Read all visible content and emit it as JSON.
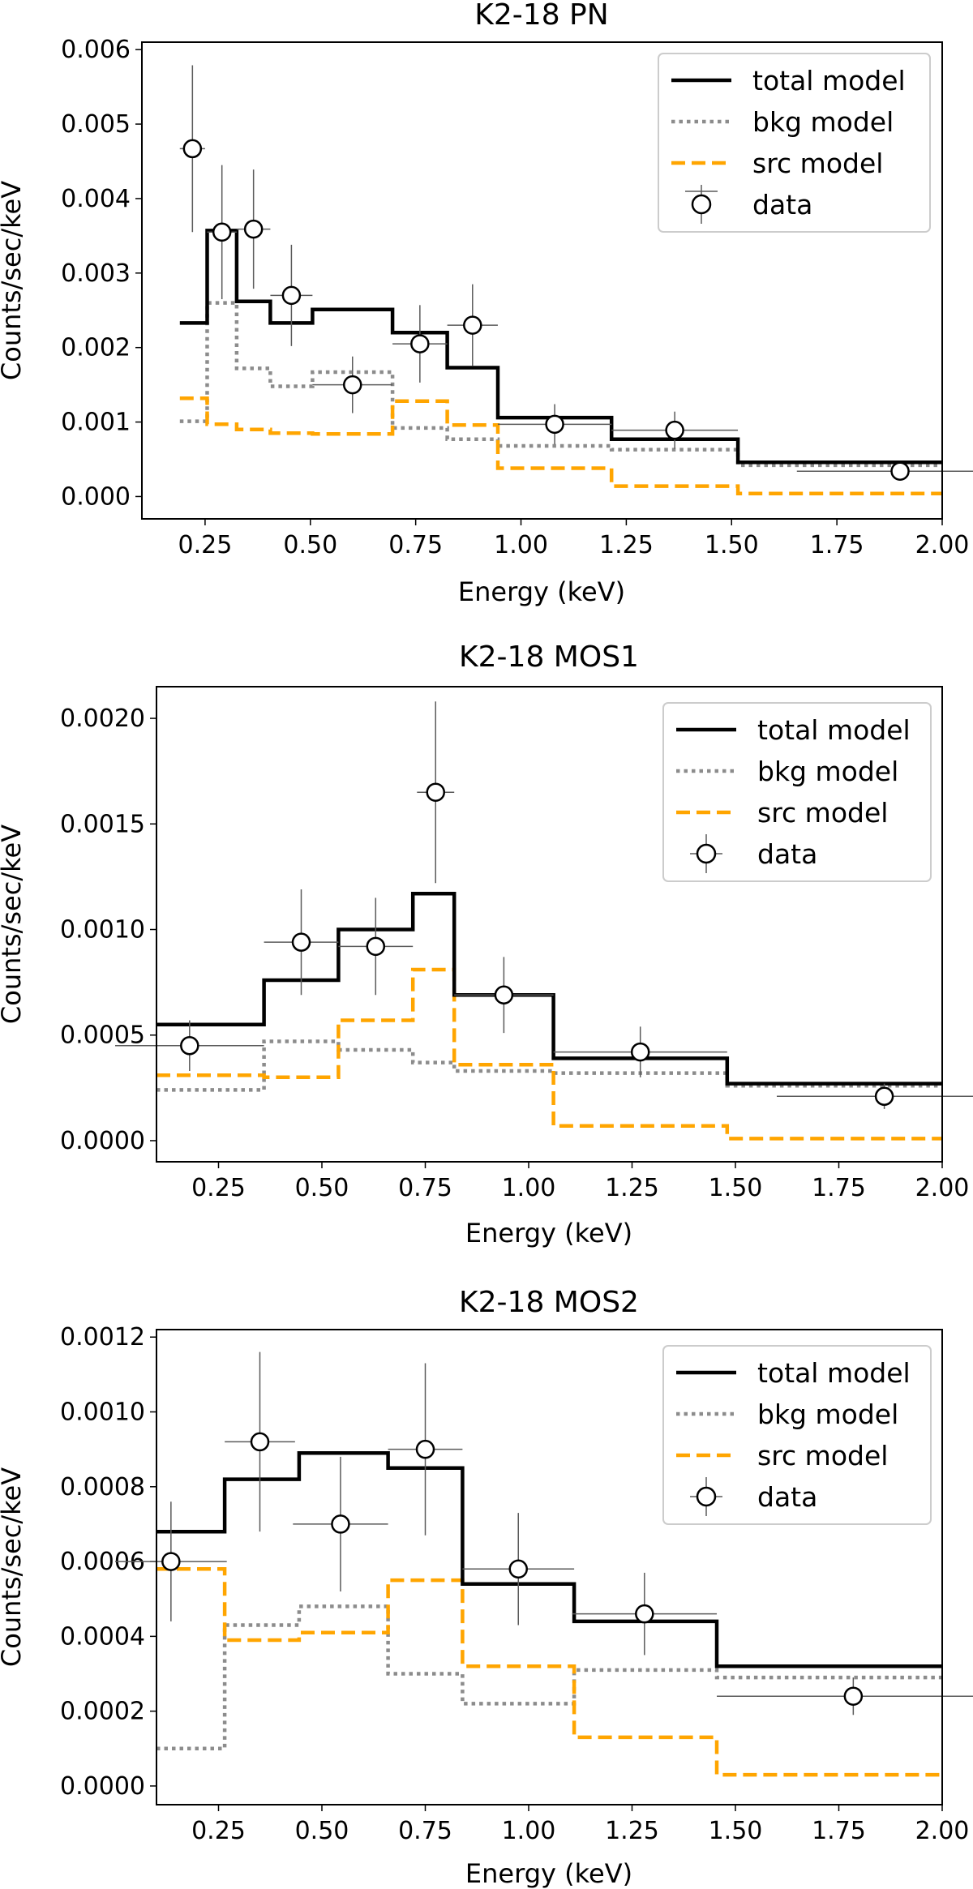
{
  "colors": {
    "total": "#000000",
    "bkg": "#8c8c8c",
    "src": "#ffa500",
    "data": "#000000",
    "errorbar": "#5a5a5a"
  },
  "chart_data": [
    {
      "type": "step-with-errorbars",
      "title": "K2-18 PN",
      "xlabel": "Energy (keV)",
      "ylabel": "Counts/sec/keV",
      "xlim": [
        0.1,
        2.0
      ],
      "ylim": [
        -0.0003,
        0.0061
      ],
      "xticks": [
        0.25,
        0.5,
        0.75,
        1.0,
        1.25,
        1.5,
        1.75,
        2.0
      ],
      "xtick_labels": [
        "0.25",
        "0.50",
        "0.75",
        "1.00",
        "1.25",
        "1.50",
        "1.75",
        "2.00"
      ],
      "yticks": [
        0,
        0.001,
        0.002,
        0.003,
        0.004,
        0.005,
        0.006
      ],
      "ytick_labels": [
        "0.000",
        "0.001",
        "0.002",
        "0.003",
        "0.004",
        "0.005",
        "0.006"
      ],
      "legend": [
        "total model",
        "bkg model",
        "src model",
        "data"
      ],
      "legend_loc": "upper right",
      "bins": [
        0.19,
        0.255,
        0.325,
        0.405,
        0.505,
        0.695,
        0.825,
        0.945,
        1.215,
        1.515,
        2.0
      ],
      "total_model": [
        0.00233,
        0.00357,
        0.00262,
        0.00233,
        0.00251,
        0.0022,
        0.00173,
        0.00106,
        0.00077,
        0.00046
      ],
      "bkg_model": [
        0.00101,
        0.0026,
        0.00172,
        0.00148,
        0.00167,
        0.00092,
        0.00077,
        0.00068,
        0.00063,
        0.00042
      ],
      "src_model": [
        0.00132,
        0.00097,
        0.0009,
        0.00085,
        0.00084,
        0.00128,
        0.00096,
        0.00038,
        0.00014,
        4e-05
      ],
      "data": {
        "x": [
          0.22,
          0.29,
          0.365,
          0.455,
          0.6,
          0.76,
          0.885,
          1.08,
          1.365,
          1.9
        ],
        "y": [
          0.00467,
          0.00355,
          0.00359,
          0.0027,
          0.0015,
          0.00205,
          0.0023,
          0.00097,
          0.00089,
          0.00034
        ],
        "xerr": [
          0.03,
          0.035,
          0.04,
          0.05,
          0.095,
          0.065,
          0.06,
          0.135,
          0.15,
          0.245
        ],
        "yerr": [
          0.00112,
          0.0009,
          0.0008,
          0.00068,
          0.00038,
          0.00052,
          0.00055,
          0.00027,
          0.00025,
          0.00012
        ]
      }
    },
    {
      "type": "step-with-errorbars",
      "title": "K2-18 MOS1",
      "xlabel": "Energy (keV)",
      "ylabel": "Counts/sec/keV",
      "xlim": [
        0.1,
        2.0
      ],
      "ylim": [
        -0.0001,
        0.00215
      ],
      "xticks": [
        0.25,
        0.5,
        0.75,
        1.0,
        1.25,
        1.5,
        1.75,
        2.0
      ],
      "xtick_labels": [
        "0.25",
        "0.50",
        "0.75",
        "1.00",
        "1.25",
        "1.50",
        "1.75",
        "2.00"
      ],
      "yticks": [
        0,
        0.0005,
        0.001,
        0.0015,
        0.002
      ],
      "ytick_labels": [
        "0.0000",
        "0.0005",
        "0.0010",
        "0.0015",
        "0.0020"
      ],
      "legend": [
        "total model",
        "bkg model",
        "src model",
        "data"
      ],
      "legend_loc": "upper right",
      "bins": [
        0.1,
        0.36,
        0.54,
        0.72,
        0.82,
        1.06,
        1.48,
        2.0
      ],
      "total_model": [
        0.00055,
        0.00076,
        0.001,
        0.00117,
        0.00069,
        0.00039,
        0.00027
      ],
      "bkg_model": [
        0.00024,
        0.00047,
        0.00043,
        0.00037,
        0.00033,
        0.00032,
        0.00026
      ],
      "src_model": [
        0.00031,
        0.0003,
        0.00057,
        0.00081,
        0.00036,
        7e-05,
        1e-05
      ],
      "data": {
        "x": [
          0.18,
          0.45,
          0.63,
          0.775,
          0.94,
          1.27,
          1.86
        ],
        "y": [
          0.00045,
          0.00094,
          0.00092,
          0.00165,
          0.00069,
          0.00042,
          0.00021
        ],
        "xerr": [
          0.18,
          0.09,
          0.09,
          0.045,
          0.12,
          0.21,
          0.26
        ],
        "yerr": [
          0.00012,
          0.00025,
          0.00023,
          0.00043,
          0.00018,
          0.00012,
          6e-05
        ]
      }
    },
    {
      "type": "step-with-errorbars",
      "title": "K2-18 MOS2",
      "xlabel": "Energy (keV)",
      "ylabel": "Counts/sec/keV",
      "xlim": [
        0.1,
        2.0
      ],
      "ylim": [
        -5e-05,
        0.00122
      ],
      "xticks": [
        0.25,
        0.5,
        0.75,
        1.0,
        1.25,
        1.5,
        1.75,
        2.0
      ],
      "xtick_labels": [
        "0.25",
        "0.50",
        "0.75",
        "1.00",
        "1.25",
        "1.50",
        "1.75",
        "2.00"
      ],
      "yticks": [
        0,
        0.0002,
        0.0004,
        0.0006,
        0.0008,
        0.001,
        0.0012
      ],
      "ytick_labels": [
        "0.0000",
        "0.0002",
        "0.0004",
        "0.0006",
        "0.0008",
        "0.0010",
        "0.0012"
      ],
      "legend": [
        "total model",
        "bkg model",
        "src model",
        "data"
      ],
      "legend_loc": "upper right",
      "bins": [
        0.1,
        0.265,
        0.445,
        0.66,
        0.84,
        1.11,
        1.455,
        2.0
      ],
      "total_model": [
        0.00068,
        0.00082,
        0.00089,
        0.00085,
        0.00054,
        0.00044,
        0.00032
      ],
      "bkg_model": [
        0.0001,
        0.00043,
        0.00048,
        0.0003,
        0.00022,
        0.00031,
        0.00029
      ],
      "src_model": [
        0.00058,
        0.00039,
        0.00041,
        0.00055,
        0.00032,
        0.00013,
        3e-05
      ],
      "data": {
        "x": [
          0.135,
          0.35,
          0.545,
          0.75,
          0.975,
          1.28,
          1.785
        ],
        "y": [
          0.0006,
          0.00092,
          0.0007,
          0.0009,
          0.00058,
          0.00046,
          0.00024
        ],
        "xerr": [
          0.135,
          0.085,
          0.115,
          0.09,
          0.135,
          0.175,
          0.33
        ],
        "yerr": [
          0.00016,
          0.00024,
          0.00018,
          0.00023,
          0.00015,
          0.00011,
          5e-05
        ]
      }
    }
  ]
}
